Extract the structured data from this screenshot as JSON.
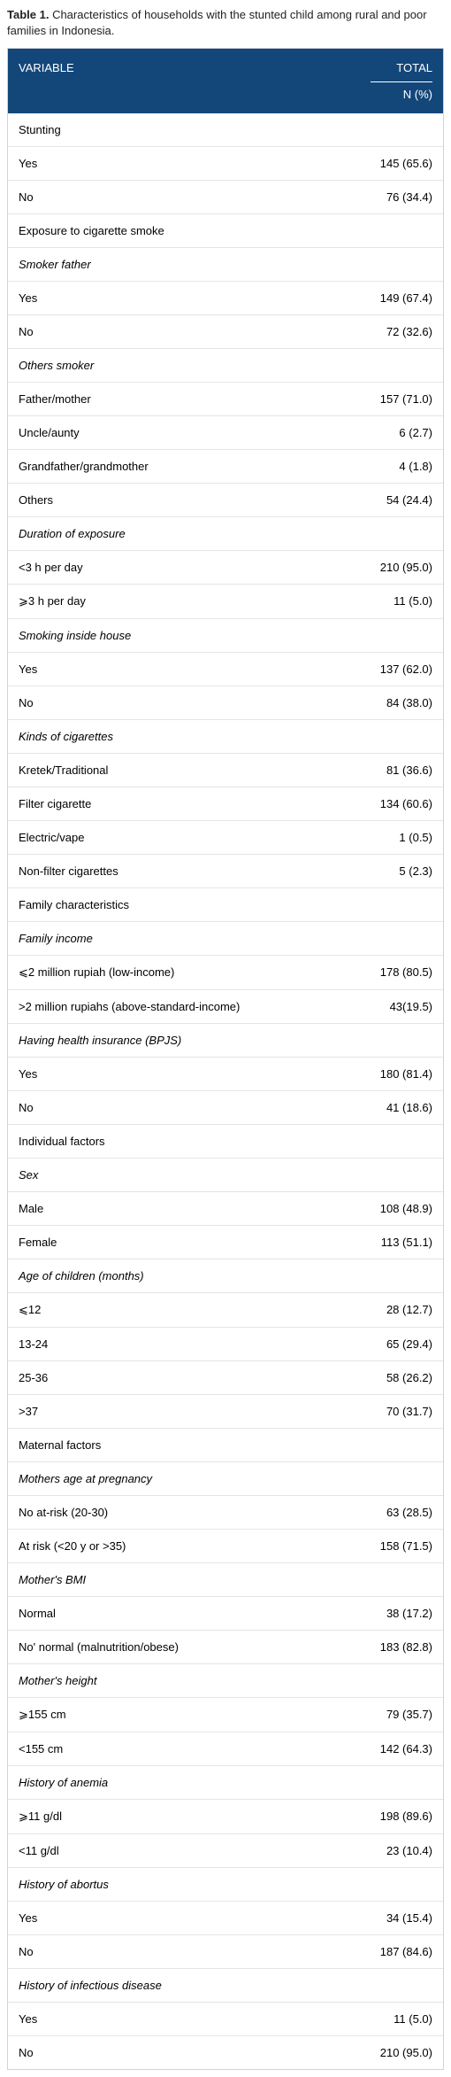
{
  "caption": {
    "label": "Table 1.",
    "text": " Characteristics of households with the stunted child among rural and poor families in Indonesia."
  },
  "colors": {
    "header_bg": "#13477a",
    "header_fg": "#ffffff",
    "border": "#d0d4d8",
    "row_border": "#e2e5e8",
    "text": "#222222"
  },
  "header": {
    "variable": "VARIABLE",
    "total": "TOTAL",
    "total_sub": "N (%)"
  },
  "rows": [
    {
      "type": "section",
      "label": "Stunting",
      "value": ""
    },
    {
      "type": "data",
      "label": "Yes",
      "value": "145 (65.6)"
    },
    {
      "type": "data",
      "label": "No",
      "value": "76 (34.4)"
    },
    {
      "type": "section",
      "label": "Exposure to cigarette smoke",
      "value": ""
    },
    {
      "type": "subsection",
      "label": "Smoker father",
      "value": ""
    },
    {
      "type": "data",
      "label": "Yes",
      "value": "149 (67.4)"
    },
    {
      "type": "data",
      "label": "No",
      "value": "72 (32.6)"
    },
    {
      "type": "subsection",
      "label": "Others smoker",
      "value": ""
    },
    {
      "type": "data",
      "label": "Father/mother",
      "value": "157 (71.0)"
    },
    {
      "type": "data",
      "label": "Uncle/aunty",
      "value": "6 (2.7)"
    },
    {
      "type": "data",
      "label": "Grandfather/grandmother",
      "value": "4 (1.8)"
    },
    {
      "type": "data",
      "label": "Others",
      "value": "54 (24.4)"
    },
    {
      "type": "subsection",
      "label": "Duration of exposure",
      "value": ""
    },
    {
      "type": "data",
      "label": "<3 h per day",
      "value": "210 (95.0)"
    },
    {
      "type": "data",
      "label": "⩾3 h per day",
      "value": "11 (5.0)"
    },
    {
      "type": "subsection",
      "label": "Smoking inside house",
      "value": ""
    },
    {
      "type": "data",
      "label": "Yes",
      "value": "137 (62.0)"
    },
    {
      "type": "data",
      "label": "No",
      "value": "84 (38.0)"
    },
    {
      "type": "subsection",
      "label": "Kinds of cigarettes",
      "value": ""
    },
    {
      "type": "data",
      "label": "Kretek/Traditional",
      "value": "81 (36.6)"
    },
    {
      "type": "data",
      "label": "Filter cigarette",
      "value": "134 (60.6)"
    },
    {
      "type": "data",
      "label": "Electric/vape",
      "value": "1 (0.5)"
    },
    {
      "type": "data",
      "label": "Non-filter cigarettes",
      "value": "5 (2.3)"
    },
    {
      "type": "section",
      "label": "Family characteristics",
      "value": ""
    },
    {
      "type": "subsection",
      "label": "Family income",
      "value": ""
    },
    {
      "type": "data",
      "label": "⩽2 million rupiah (low-income)",
      "value": "178 (80.5)"
    },
    {
      "type": "data",
      "label": ">2 million rupiahs (above-standard-income)",
      "value": "43(19.5)"
    },
    {
      "type": "subsection",
      "label": "Having health insurance (BPJS)",
      "value": ""
    },
    {
      "type": "data",
      "label": "Yes",
      "value": "180 (81.4)"
    },
    {
      "type": "data",
      "label": "No",
      "value": "41 (18.6)"
    },
    {
      "type": "section",
      "label": "Individual factors",
      "value": ""
    },
    {
      "type": "subsection",
      "label": "Sex",
      "value": ""
    },
    {
      "type": "data",
      "label": "Male",
      "value": "108 (48.9)"
    },
    {
      "type": "data",
      "label": "Female",
      "value": "113 (51.1)"
    },
    {
      "type": "subsection",
      "label": "Age of children (months)",
      "value": ""
    },
    {
      "type": "data",
      "label": "⩽12",
      "value": "28 (12.7)"
    },
    {
      "type": "data",
      "label": "13-24",
      "value": "65 (29.4)"
    },
    {
      "type": "data",
      "label": "25-36",
      "value": "58 (26.2)"
    },
    {
      "type": "data",
      "label": ">37",
      "value": "70 (31.7)"
    },
    {
      "type": "section",
      "label": "Maternal factors",
      "value": ""
    },
    {
      "type": "subsection",
      "label": "Mothers age at pregnancy",
      "value": ""
    },
    {
      "type": "data",
      "label": "No at-risk (20-30)",
      "value": "63 (28.5)"
    },
    {
      "type": "data",
      "label": "At risk (<20 y or >35)",
      "value": "158 (71.5)"
    },
    {
      "type": "subsection",
      "label": "Mother's BMI",
      "value": ""
    },
    {
      "type": "data",
      "label": "Normal",
      "value": "38 (17.2)"
    },
    {
      "type": "data",
      "label": "No' normal (malnutrition/obese)",
      "value": "183 (82.8)"
    },
    {
      "type": "subsection",
      "label": "Mother's height",
      "value": ""
    },
    {
      "type": "data",
      "label": "⩾155 cm",
      "value": "79 (35.7)"
    },
    {
      "type": "data",
      "label": "<155 cm",
      "value": "142 (64.3)"
    },
    {
      "type": "subsection",
      "label": "History of anemia",
      "value": ""
    },
    {
      "type": "data",
      "label": "⩾11 g/dl",
      "value": "198 (89.6)"
    },
    {
      "type": "data",
      "label": "<11 g/dl",
      "value": "23 (10.4)"
    },
    {
      "type": "subsection",
      "label": "History of abortus",
      "value": ""
    },
    {
      "type": "data",
      "label": "Yes",
      "value": "34 (15.4)"
    },
    {
      "type": "data",
      "label": "No",
      "value": "187 (84.6)"
    },
    {
      "type": "subsection",
      "label": "History of infectious disease",
      "value": ""
    },
    {
      "type": "data",
      "label": "Yes",
      "value": "11 (5.0)"
    },
    {
      "type": "data",
      "label": "No",
      "value": "210 (95.0)"
    }
  ]
}
